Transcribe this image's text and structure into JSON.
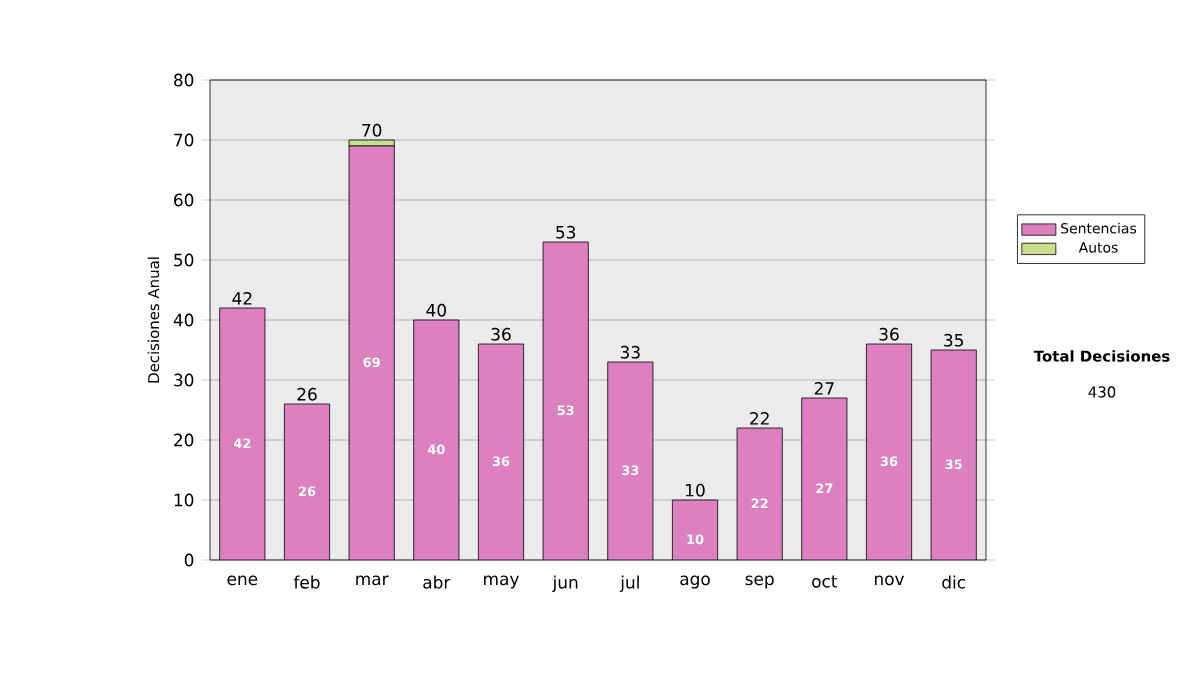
{
  "chart_data": {
    "type": "bar",
    "stacked": true,
    "ylabel": "Decisiones Anual",
    "categories": [
      "ene",
      "feb",
      "mar",
      "abr",
      "may",
      "jun",
      "jul",
      "ago",
      "sep",
      "oct",
      "nov",
      "dic"
    ],
    "series": [
      {
        "name": "Sentencias",
        "color": "#dd80c0",
        "values": [
          42,
          26,
          69,
          40,
          36,
          53,
          33,
          10,
          22,
          27,
          36,
          35
        ],
        "value_labels": [
          "42",
          "26",
          "69",
          "40",
          "36",
          "53",
          "33",
          "10",
          "22",
          "27",
          "36",
          "35"
        ]
      },
      {
        "name": "Autos",
        "color": "#c8e08c",
        "values": [
          0,
          0,
          1,
          0,
          0,
          0,
          0,
          0,
          0,
          0,
          0,
          0
        ]
      }
    ],
    "totals": [
      "42",
      "26",
      "70",
      "40",
      "36",
      "53",
      "33",
      "10",
      "22",
      "27",
      "36",
      "35"
    ],
    "ylim": [
      0,
      80
    ],
    "yticks": [
      0,
      10,
      20,
      30,
      40,
      50,
      60,
      70,
      80
    ],
    "grid": "y",
    "legend": "right",
    "annotations": [
      "**Total Decisiones**",
      "430"
    ]
  }
}
